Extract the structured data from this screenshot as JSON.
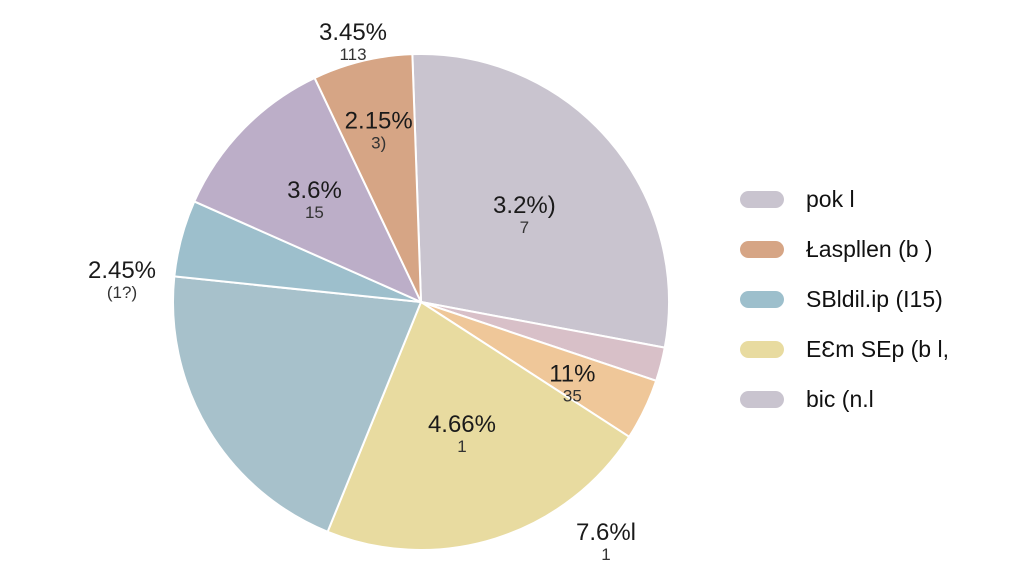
{
  "chart_data": {
    "type": "pie",
    "title": "",
    "slices": [
      {
        "pct_label": "3.2%)",
        "count_label": "7",
        "value": 28.5,
        "color": "#c9c4cf"
      },
      {
        "pct_label": "",
        "count_label": "",
        "value": 2.2,
        "color": "#d8c0c8"
      },
      {
        "pct_label": "11%",
        "count_label": "35",
        "value": 4.0,
        "color": "#efc799"
      },
      {
        "pct_label": "4.66%",
        "count_label": "1",
        "value": 22.0,
        "color": "#e8dba0"
      },
      {
        "pct_label": "",
        "count_label": "",
        "value": 20.5,
        "color": "#a7c1cb"
      },
      {
        "pct_label": "2.45%",
        "count_label": "(1?)",
        "value": 5.0,
        "color": "#9dbfcc"
      },
      {
        "pct_label": "3.6%",
        "count_label": "15",
        "value": 11.3,
        "color": "#bcaec8"
      },
      {
        "pct_label": "2.15%",
        "count_label": "3)",
        "value": 6.5,
        "color": "#d6a585"
      }
    ],
    "outer_labels": [
      {
        "pct_label": "3.45%",
        "count_label": "113"
      },
      {
        "pct_label": "7.6%l",
        "count_label": "1"
      }
    ],
    "legend": [
      {
        "label": "pok l",
        "color": "#c9c4cf"
      },
      {
        "label": "Łaspllen (b )",
        "color": "#d6a585"
      },
      {
        "label": "SBldil.ip (I15)",
        "color": "#9dbfcc"
      },
      {
        "label": "EƐm SEp (b l,",
        "color": "#e8dba0"
      },
      {
        "label": "bic (n.l",
        "color": "#c9c4cf"
      }
    ],
    "legend_position": "right"
  }
}
